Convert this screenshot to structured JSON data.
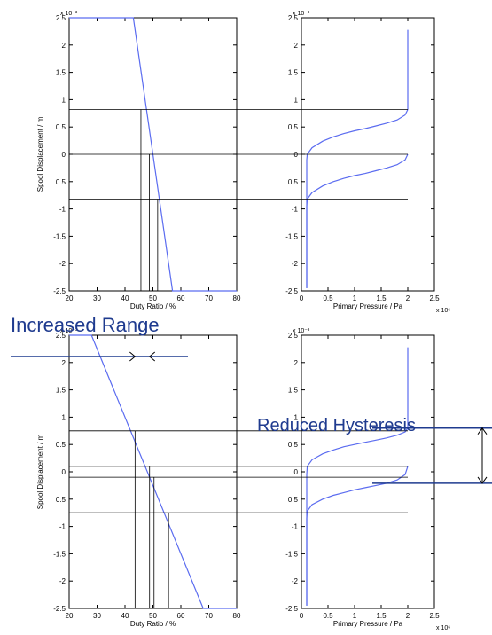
{
  "figure": {
    "annotations": {
      "increased_range": "Increased Range",
      "reduced_hysteresis": "Reduced Hysteresis"
    },
    "colors": {
      "curve": "#5b6cf0",
      "guide": "#000000",
      "annotation": "#1f3b8f",
      "axis": "#000000"
    }
  },
  "chart_data": [
    {
      "type": "line",
      "panel": "top-left",
      "xlabel": "Duty Ratio / %",
      "ylabel": "Spool Displacement / m",
      "y_exponent": "x 10⁻³",
      "xlim": [
        20,
        80
      ],
      "ylim": [
        -2.5,
        2.5
      ],
      "xticks": [
        "20",
        "30",
        "40",
        "50",
        "60",
        "70",
        "80"
      ],
      "yticks": [
        "2.5",
        "2",
        "1.5",
        "1",
        "0.5",
        "0",
        "0.5",
        "-1",
        "-1.5",
        "-2",
        "-2.5"
      ],
      "series": [
        {
          "x": [
            20,
            43,
            57,
            80
          ],
          "y": [
            2.5,
            2.5,
            -2.5,
            -2.5
          ]
        }
      ],
      "guide_levels": [
        0.82,
        0,
        -0.82
      ],
      "guide_x": [
        45.7,
        48.7,
        51.7
      ]
    },
    {
      "type": "line",
      "panel": "top-right",
      "xlabel": "Primary Pressure / Pa",
      "ylabel": "",
      "x_exponent": "x 10⁶",
      "y_exponent": "x 10⁻³",
      "xlim": [
        0,
        2.5
      ],
      "ylim": [
        -2.5,
        2.5
      ],
      "xticks": [
        "0",
        "0.5",
        "1",
        "1.5",
        "2",
        "2.5"
      ],
      "yticks": [
        "2.5",
        "2",
        "1.5",
        "1",
        "0.5",
        "0",
        "0.5",
        "-1",
        "-1.5",
        "-2",
        "-2.5"
      ],
      "series": [
        {
          "x": [
            0.1,
            0.1,
            0.11,
            0.2,
            0.4,
            0.6,
            0.8,
            1.0,
            1.2,
            1.4,
            1.6,
            1.8,
            1.95,
            2.0,
            2.0,
            2.0
          ],
          "y": [
            -2.45,
            -0.1,
            0.0,
            0.12,
            0.24,
            0.32,
            0.38,
            0.43,
            0.47,
            0.52,
            0.57,
            0.63,
            0.72,
            0.82,
            1.5,
            2.28
          ]
        },
        {
          "x": [
            0.1,
            0.1,
            0.11,
            0.2,
            0.4,
            0.6,
            0.8,
            1.0,
            1.2,
            1.4,
            1.6,
            1.8,
            1.95,
            2.0
          ],
          "y": [
            -2.45,
            -0.95,
            -0.82,
            -0.7,
            -0.58,
            -0.5,
            -0.44,
            -0.39,
            -0.35,
            -0.3,
            -0.25,
            -0.19,
            -0.1,
            0.0
          ]
        }
      ]
    },
    {
      "type": "line",
      "panel": "bottom-left",
      "xlabel": "Duty Ratio / %",
      "ylabel": "Spool Displacement / m",
      "y_exponent": "x 10⁻³",
      "xlim": [
        20,
        80
      ],
      "ylim": [
        -2.5,
        2.5
      ],
      "xticks": [
        "20",
        "30",
        "40",
        "50",
        "60",
        "70",
        "80"
      ],
      "yticks": [
        "2.5",
        "2",
        "1.5",
        "1",
        "0.5",
        "0",
        "0.5",
        "-1",
        "-1.5",
        "-2",
        "-2.5"
      ],
      "series": [
        {
          "x": [
            20,
            28,
            68,
            80
          ],
          "y": [
            2.5,
            2.5,
            -2.5,
            -2.5
          ]
        }
      ],
      "guide_levels": [
        0.75,
        0.1,
        -0.1,
        -0.75
      ],
      "guide_x": [
        43.6,
        48.8,
        50.4,
        55.6
      ]
    },
    {
      "type": "line",
      "panel": "bottom-right",
      "xlabel": "Primary Pressure / Pa",
      "ylabel": "",
      "x_exponent": "x 10⁶",
      "y_exponent": "x 10⁻³",
      "xlim": [
        0,
        2.5
      ],
      "ylim": [
        -2.5,
        2.5
      ],
      "xticks": [
        "0",
        "0.5",
        "1",
        "1.5",
        "2",
        "2.5"
      ],
      "yticks": [
        "2.5",
        "2",
        "1.5",
        "1",
        "0.5",
        "0",
        "0.5",
        "-1",
        "-1.5",
        "-2",
        "-2.5"
      ],
      "series": [
        {
          "x": [
            0.1,
            0.1,
            0.11,
            0.2,
            0.4,
            0.6,
            0.8,
            1.0,
            1.2,
            1.4,
            1.6,
            1.8,
            1.95,
            2.0,
            2.0,
            2.0
          ],
          "y": [
            -2.45,
            -0.05,
            0.1,
            0.22,
            0.33,
            0.4,
            0.46,
            0.5,
            0.54,
            0.58,
            0.62,
            0.67,
            0.73,
            0.8,
            1.5,
            2.28
          ]
        },
        {
          "x": [
            0.1,
            0.1,
            0.11,
            0.2,
            0.4,
            0.6,
            0.8,
            1.0,
            1.2,
            1.4,
            1.6,
            1.8,
            1.95,
            2.0
          ],
          "y": [
            -2.45,
            -0.85,
            -0.72,
            -0.6,
            -0.5,
            -0.43,
            -0.38,
            -0.33,
            -0.29,
            -0.25,
            -0.21,
            -0.15,
            -0.05,
            0.1
          ]
        }
      ]
    }
  ]
}
